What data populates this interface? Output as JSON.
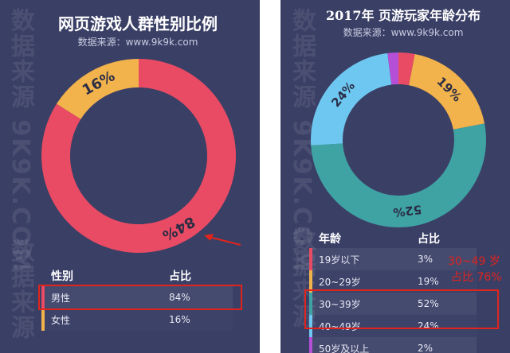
{
  "watermark": "数据来源 9K9K.COM",
  "chart_data": [
    {
      "type": "pie",
      "title": "网页游戏人群性别比例",
      "source": "数据来源：www.9k9k.com",
      "categories": [
        "男性",
        "女性"
      ],
      "values": [
        84,
        16
      ],
      "labels": [
        "84%",
        "16%"
      ],
      "colors": [
        "#e84b63",
        "#f2b24c"
      ],
      "table": {
        "headers": [
          "性别",
          "占比"
        ],
        "rows": [
          [
            "男性",
            "84%"
          ],
          [
            "女性",
            "16%"
          ]
        ]
      }
    },
    {
      "type": "pie",
      "title": "2017年 页游玩家年龄分布",
      "source": "数据来源：www.9k9k.com",
      "categories": [
        "19岁以下",
        "20~29岁",
        "30~39岁",
        "40~49岁",
        "50岁及以上"
      ],
      "values": [
        3,
        19,
        52,
        24,
        2
      ],
      "labels": [
        "",
        "19%",
        "52%",
        "24%",
        ""
      ],
      "colors": [
        "#e84b63",
        "#f2b24c",
        "#3fa3a3",
        "#6ec7f0",
        "#b44fd6"
      ],
      "table": {
        "headers": [
          "年龄",
          "占比"
        ],
        "rows": [
          [
            "19岁以下",
            "3%"
          ],
          [
            "20~29岁",
            "19%"
          ],
          [
            "30~39岁",
            "52%"
          ],
          [
            "40~49岁",
            "24%"
          ],
          [
            "50岁及以上",
            "2%"
          ]
        ]
      },
      "annotation": [
        "30~49 岁",
        "占比 76%"
      ]
    }
  ]
}
